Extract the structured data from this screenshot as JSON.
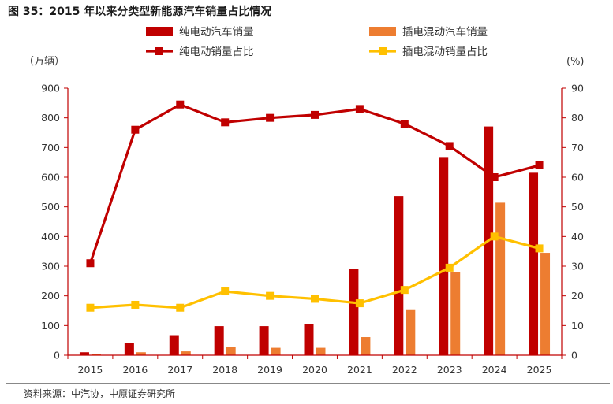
{
  "header": {
    "title": "图 35：2015 年以来分类型新能源汽车销量占比情况"
  },
  "footer": {
    "source": "资料来源：中汽协，中原证券研究所"
  },
  "chart_data": {
    "type": "bar+line",
    "categories": [
      "2015",
      "2016",
      "2017",
      "2018",
      "2019",
      "2020",
      "2021",
      "2022",
      "2023",
      "2024",
      "2025"
    ],
    "left_axis": {
      "unit_label": "（万辆）",
      "ylim": [
        0,
        900
      ],
      "ticks": [
        0,
        100,
        200,
        300,
        400,
        500,
        600,
        700,
        800,
        900
      ]
    },
    "right_axis": {
      "unit_label": "(%)",
      "ylim": [
        0,
        90
      ],
      "ticks": [
        0,
        10,
        20,
        30,
        40,
        50,
        60,
        70,
        80,
        90
      ]
    },
    "bar_series": [
      {
        "name": "纯电动汽车销量",
        "color": "#c00000",
        "axis": "left",
        "values": [
          10,
          40,
          65,
          98,
          98,
          106,
          290,
          536,
          668,
          771,
          615
        ]
      },
      {
        "name": "插电混动汽车销量",
        "color": "#ed7d31",
        "axis": "left",
        "values": [
          5,
          10,
          13,
          27,
          25,
          25,
          61,
          152,
          280,
          514,
          345
        ]
      }
    ],
    "line_series": [
      {
        "name": "纯电动销量占比",
        "color": "#c00000",
        "axis": "right",
        "values": [
          31,
          76,
          84.5,
          78.5,
          80,
          81,
          83,
          78,
          70.5,
          60,
          64
        ]
      },
      {
        "name": "插电混动销量占比",
        "color": "#ffc000",
        "axis": "right",
        "values": [
          16,
          17,
          16,
          21.5,
          20,
          19,
          17.5,
          22,
          29.5,
          40,
          36
        ]
      }
    ]
  }
}
